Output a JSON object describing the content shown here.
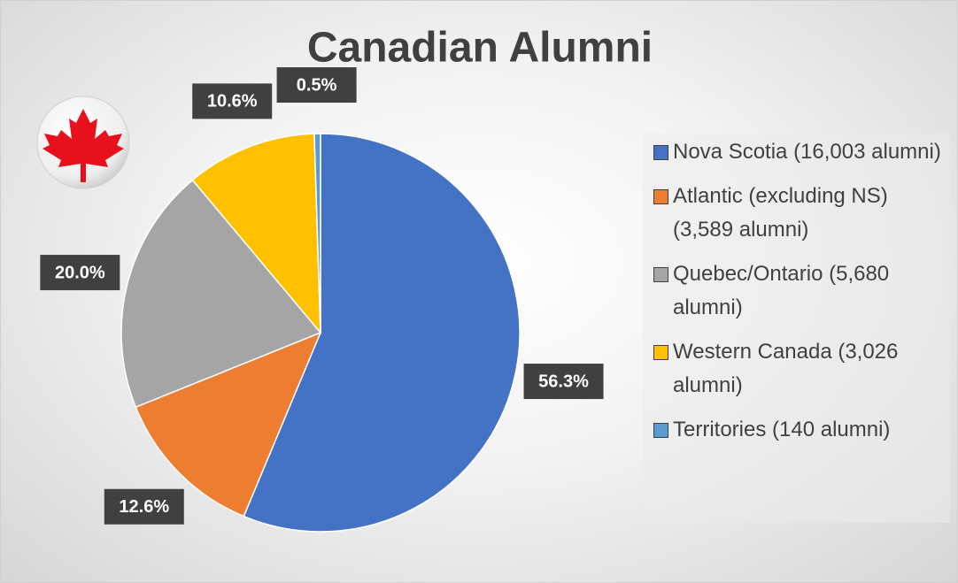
{
  "chart_data": {
    "type": "pie",
    "title": "Canadian Alumni",
    "categories": [
      "Nova Scotia (16,003 alumni)",
      "Atlantic (excluding NS) (3,589 alumni)",
      "Quebec/Ontario (5,680 alumni)",
      "Western Canada (3,026 alumni)",
      "Territories (140 alumni)"
    ],
    "values": [
      56.3,
      12.6,
      20.0,
      10.6,
      0.5
    ],
    "value_labels": [
      "56.3%",
      "12.6%",
      "20.0%",
      "10.6%",
      "0.5%"
    ],
    "colors": [
      "#4472c4",
      "#ed7d31",
      "#a5a5a5",
      "#ffc000",
      "#5b9bd5"
    ],
    "legend": "right"
  }
}
